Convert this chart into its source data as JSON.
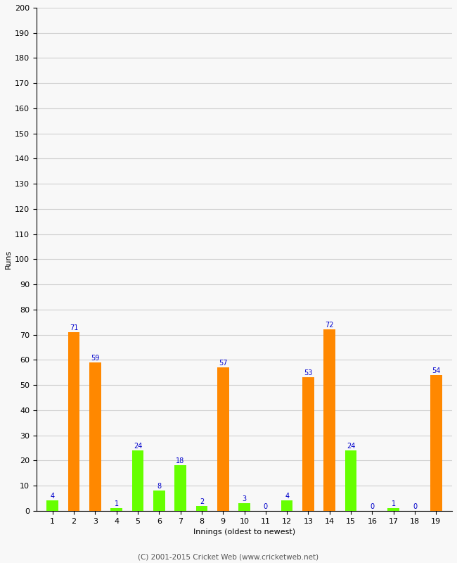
{
  "xlabel": "Innings (oldest to newest)",
  "ylabel": "Runs",
  "ylim": [
    0,
    200
  ],
  "yticks": [
    0,
    10,
    20,
    30,
    40,
    50,
    60,
    70,
    80,
    90,
    100,
    110,
    120,
    130,
    140,
    150,
    160,
    170,
    180,
    190,
    200
  ],
  "innings_labels": [
    "1",
    "2",
    "3",
    "4",
    "5",
    "6",
    "7",
    "8",
    "9",
    "10",
    "11",
    "12",
    "13",
    "14",
    "15",
    "16",
    "17",
    "18",
    "19"
  ],
  "values": [
    4,
    71,
    59,
    1,
    24,
    8,
    18,
    2,
    57,
    3,
    0,
    4,
    53,
    72,
    24,
    0,
    1,
    0,
    54
  ],
  "colors": [
    "#66ff00",
    "#ff8800",
    "#ff8800",
    "#66ff00",
    "#66ff00",
    "#66ff00",
    "#66ff00",
    "#66ff00",
    "#ff8800",
    "#66ff00",
    "#66ff00",
    "#66ff00",
    "#ff8800",
    "#ff8800",
    "#66ff00",
    "#66ff00",
    "#66ff00",
    "#66ff00",
    "#ff8800"
  ],
  "label_color": "#0000cc",
  "background_color": "#f8f8f8",
  "grid_color": "#d0d0d0",
  "footer": "(C) 2001-2015 Cricket Web (www.cricketweb.net)",
  "bar_width": 0.55
}
